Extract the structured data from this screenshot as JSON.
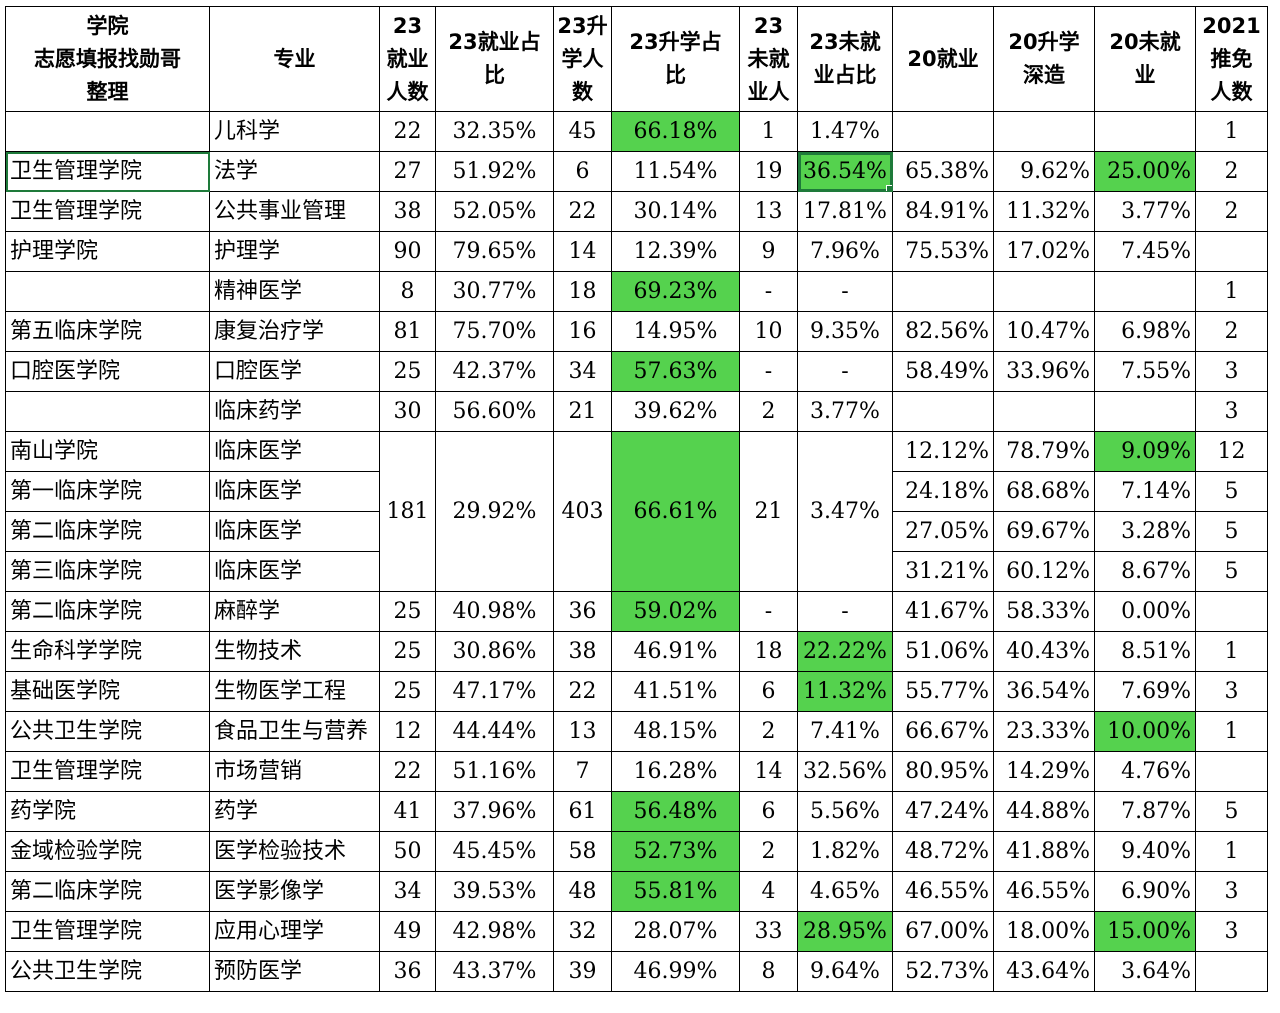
{
  "header": [
    "学院\n志愿填报找勋哥\n整理",
    "专业",
    "23\n就业\n人数",
    "23就业占\n比",
    "23升\n学人\n数",
    "23升学占\n比",
    "23\n未就\n业人",
    "23未就\n业占比",
    "20就业",
    "20升学\n深造",
    "20未就\n业",
    "2021\n推免\n人数"
  ],
  "rows": [
    {
      "college": "",
      "major": "儿科学",
      "emp": "22",
      "emp_pct": "32.35%",
      "up": "45",
      "up_pct": "66.18%",
      "un": "1",
      "un_pct": "1.47%",
      "e20": "",
      "u20": "",
      "n20": "",
      "rec": "1"
    },
    {
      "college": "卫生管理学院",
      "major": "法学",
      "emp": "27",
      "emp_pct": "51.92%",
      "up": "6",
      "up_pct": "11.54%",
      "un": "19",
      "un_pct": "36.54%",
      "e20": "65.38%",
      "u20": "9.62%",
      "n20": "25.00%",
      "rec": "2"
    },
    {
      "college": "卫生管理学院",
      "major": "公共事业管理",
      "emp": "38",
      "emp_pct": "52.05%",
      "up": "22",
      "up_pct": "30.14%",
      "un": "13",
      "un_pct": "17.81%",
      "e20": "84.91%",
      "u20": "11.32%",
      "n20": "3.77%",
      "rec": "2"
    },
    {
      "college": "护理学院",
      "major": "护理学",
      "emp": "90",
      "emp_pct": "79.65%",
      "up": "14",
      "up_pct": "12.39%",
      "un": "9",
      "un_pct": "7.96%",
      "e20": "75.53%",
      "u20": "17.02%",
      "n20": "7.45%",
      "rec": ""
    },
    {
      "college": "",
      "major": "精神医学",
      "emp": "8",
      "emp_pct": "30.77%",
      "up": "18",
      "up_pct": "69.23%",
      "un": "-",
      "un_pct": "-",
      "e20": "",
      "u20": "",
      "n20": "",
      "rec": "1"
    },
    {
      "college": "第五临床学院",
      "major": "康复治疗学",
      "emp": "81",
      "emp_pct": "75.70%",
      "up": "16",
      "up_pct": "14.95%",
      "un": "10",
      "un_pct": "9.35%",
      "e20": "82.56%",
      "u20": "10.47%",
      "n20": "6.98%",
      "rec": "2"
    },
    {
      "college": "口腔医学院",
      "major": "口腔医学",
      "emp": "25",
      "emp_pct": "42.37%",
      "up": "34",
      "up_pct": "57.63%",
      "un": "-",
      "un_pct": "-",
      "e20": "58.49%",
      "u20": "33.96%",
      "n20": "7.55%",
      "rec": "3"
    },
    {
      "college": "",
      "major": "临床药学",
      "emp": "30",
      "emp_pct": "56.60%",
      "up": "21",
      "up_pct": "39.62%",
      "un": "2",
      "un_pct": "3.77%",
      "e20": "",
      "u20": "",
      "n20": "",
      "rec": "3"
    }
  ],
  "merged_group": {
    "emp": "181",
    "emp_pct": "29.92%",
    "up": "403",
    "up_pct": "66.61%",
    "un": "21",
    "un_pct": "3.47%",
    "rows": [
      {
        "college": "南山学院",
        "major": "临床医学",
        "e20": "12.12%",
        "u20": "78.79%",
        "n20": "9.09%",
        "rec": "12"
      },
      {
        "college": "第一临床学院",
        "major": "临床医学",
        "e20": "24.18%",
        "u20": "68.68%",
        "n20": "7.14%",
        "rec": "5"
      },
      {
        "college": "第二临床学院",
        "major": "临床医学",
        "e20": "27.05%",
        "u20": "69.67%",
        "n20": "3.28%",
        "rec": "5"
      },
      {
        "college": "第三临床学院",
        "major": "临床医学",
        "e20": "31.21%",
        "u20": "60.12%",
        "n20": "8.67%",
        "rec": "5"
      }
    ]
  },
  "rows2": [
    {
      "college": "第二临床学院",
      "major": "麻醉学",
      "emp": "25",
      "emp_pct": "40.98%",
      "up": "36",
      "up_pct": "59.02%",
      "un": "-",
      "un_pct": "-",
      "e20": "41.67%",
      "u20": "58.33%",
      "n20": "0.00%",
      "rec": ""
    },
    {
      "college": "生命科学学院",
      "major": "生物技术",
      "emp": "25",
      "emp_pct": "30.86%",
      "up": "38",
      "up_pct": "46.91%",
      "un": "18",
      "un_pct": "22.22%",
      "e20": "51.06%",
      "u20": "40.43%",
      "n20": "8.51%",
      "rec": "1"
    },
    {
      "college": "基础医学院",
      "major": "生物医学工程",
      "emp": "25",
      "emp_pct": "47.17%",
      "up": "22",
      "up_pct": "41.51%",
      "un": "6",
      "un_pct": "11.32%",
      "e20": "55.77%",
      "u20": "36.54%",
      "n20": "7.69%",
      "rec": "3"
    },
    {
      "college": "公共卫生学院",
      "major": "食品卫生与营养",
      "emp": "12",
      "emp_pct": "44.44%",
      "up": "13",
      "up_pct": "48.15%",
      "un": "2",
      "un_pct": "7.41%",
      "e20": "66.67%",
      "u20": "23.33%",
      "n20": "10.00%",
      "rec": "1"
    },
    {
      "college": "卫生管理学院",
      "major": "市场营销",
      "emp": "22",
      "emp_pct": "51.16%",
      "up": "7",
      "up_pct": "16.28%",
      "un": "14",
      "un_pct": "32.56%",
      "e20": "80.95%",
      "u20": "14.29%",
      "n20": "4.76%",
      "rec": ""
    },
    {
      "college": "药学院",
      "major": "药学",
      "emp": "41",
      "emp_pct": "37.96%",
      "up": "61",
      "up_pct": "56.48%",
      "un": "6",
      "un_pct": "5.56%",
      "e20": "47.24%",
      "u20": "44.88%",
      "n20": "7.87%",
      "rec": "5"
    },
    {
      "college": "金域检验学院",
      "major": "医学检验技术",
      "emp": "50",
      "emp_pct": "45.45%",
      "up": "58",
      "up_pct": "52.73%",
      "un": "2",
      "un_pct": "1.82%",
      "e20": "48.72%",
      "u20": "41.88%",
      "n20": "9.40%",
      "rec": "1"
    },
    {
      "college": "第二临床学院",
      "major": "医学影像学",
      "emp": "34",
      "emp_pct": "39.53%",
      "up": "48",
      "up_pct": "55.81%",
      "un": "4",
      "un_pct": "4.65%",
      "e20": "46.55%",
      "u20": "46.55%",
      "n20": "6.90%",
      "rec": "3"
    },
    {
      "college": "卫生管理学院",
      "major": "应用心理学",
      "emp": "49",
      "emp_pct": "42.98%",
      "up": "32",
      "up_pct": "28.07%",
      "un": "33",
      "un_pct": "28.95%",
      "e20": "67.00%",
      "u20": "18.00%",
      "n20": "15.00%",
      "rec": "3"
    },
    {
      "college": "公共卫生学院",
      "major": "预防医学",
      "emp": "36",
      "emp_pct": "43.37%",
      "up": "39",
      "up_pct": "46.99%",
      "un": "8",
      "un_pct": "9.64%",
      "e20": "52.73%",
      "u20": "43.64%",
      "n20": "3.64%",
      "rec": ""
    }
  ],
  "colors": {
    "highlight": "#55d24e",
    "selection": "#1e7a3a"
  }
}
